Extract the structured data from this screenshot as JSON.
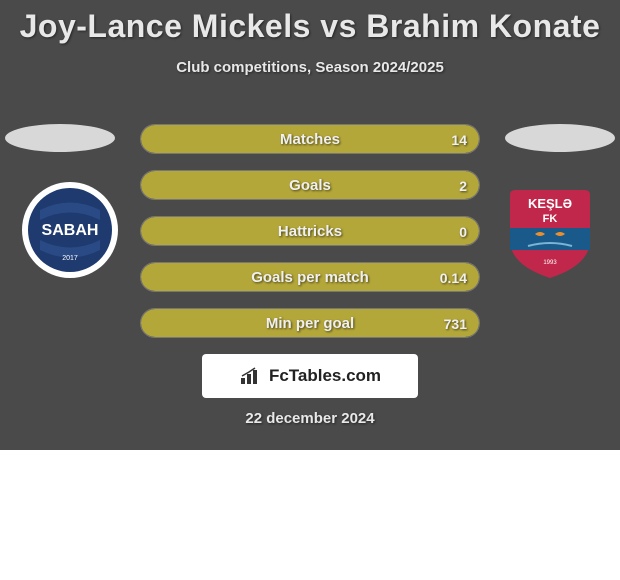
{
  "title": "Joy-Lance Mickels vs Brahim Konate",
  "subtitle": "Club competitions, Season 2024/2025",
  "date": "22 december 2024",
  "logo": "FcTables.com",
  "colors": {
    "background": "#4a4a4a",
    "bar_fill": "#b4a73a",
    "bar_highlight": "#c9bc4f",
    "text": "#e8e8e8",
    "oval": "#d8d8d8"
  },
  "club_left": {
    "name": "SABAH",
    "outer": "#ffffff",
    "inner": "#1e3a6e",
    "stripe": "#2a4a85"
  },
  "club_right": {
    "name": "KEŞLƏ FK",
    "shield": "#c1274a",
    "band": "#1a5a8a"
  },
  "stats": [
    {
      "label": "Matches",
      "value_right": "14",
      "left_pct": 50,
      "right_pct": 50
    },
    {
      "label": "Goals",
      "value_right": "2",
      "left_pct": 50,
      "right_pct": 50
    },
    {
      "label": "Hattricks",
      "value_right": "0",
      "left_pct": 50,
      "right_pct": 50
    },
    {
      "label": "Goals per match",
      "value_right": "0.14",
      "left_pct": 50,
      "right_pct": 50
    },
    {
      "label": "Min per goal",
      "value_right": "731",
      "left_pct": 50,
      "right_pct": 50
    }
  ]
}
